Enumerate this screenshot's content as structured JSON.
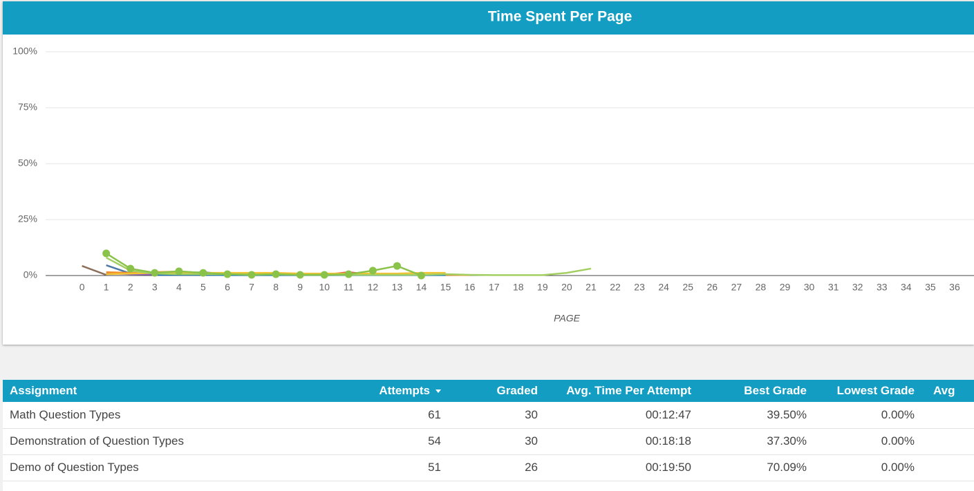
{
  "chart_data": {
    "type": "line",
    "title": "Time Spent Per Page",
    "xlabel": "PAGE",
    "xlim": [
      -1.5,
      36.8
    ],
    "xticks": [
      0,
      1,
      2,
      3,
      4,
      5,
      6,
      7,
      8,
      9,
      10,
      11,
      12,
      13,
      14,
      15,
      16,
      17,
      18,
      19,
      20,
      21,
      22,
      23,
      24,
      25,
      26,
      27,
      28,
      29,
      30,
      31,
      32,
      33,
      34,
      35,
      36
    ],
    "ylim": [
      0,
      100
    ],
    "yticks": [
      {
        "value": 0,
        "label": "0%"
      },
      {
        "value": 25,
        "label": "25%"
      },
      {
        "value": 50,
        "label": "50%"
      },
      {
        "value": 75,
        "label": "75%"
      },
      {
        "value": 100,
        "label": "100%"
      }
    ],
    "grid": true,
    "series": [
      {
        "color": "#8b6f5a",
        "x": [
          0,
          1
        ],
        "values": [
          4.3,
          0.3
        ]
      },
      {
        "color": "#4e79a7",
        "x": [
          1,
          2,
          3,
          4,
          5,
          6
        ],
        "values": [
          4.6,
          0.9,
          0.5,
          0.9,
          1.5,
          0.5
        ]
      },
      {
        "color": "#9467bd",
        "x": [
          1,
          2,
          3,
          4,
          5,
          6
        ],
        "values": [
          1.0,
          0.6,
          0.5,
          0.9,
          0.6,
          0.3
        ]
      },
      {
        "color": "#f28e2b",
        "x": [
          1,
          2,
          3,
          4,
          5,
          6,
          7,
          8,
          9,
          10,
          11,
          12,
          13,
          14,
          15,
          16
        ],
        "values": [
          1.5,
          1.2,
          1.5,
          1.8,
          1.2,
          0.9,
          0.6,
          0.6,
          0.6,
          0.3,
          0.6,
          0.3,
          0.3,
          0.3,
          0.3,
          0.2
        ]
      },
      {
        "color": "#e15759",
        "x": [
          9,
          10,
          11,
          12
        ],
        "values": [
          0.3,
          0.3,
          1.5,
          0.3
        ]
      },
      {
        "color": "#f1c232",
        "x": [
          1,
          2,
          3,
          4,
          5,
          6,
          7,
          8,
          9,
          10,
          11,
          12,
          13,
          14,
          15
        ],
        "values": [
          0.6,
          0.9,
          1.2,
          1.2,
          1.2,
          1.2,
          1.2,
          1.2,
          0.9,
          0.9,
          0.9,
          0.9,
          0.9,
          1.2,
          1.2
        ]
      },
      {
        "color": "#1f77b4",
        "x": [
          3,
          4,
          5,
          6,
          7,
          8,
          9,
          10,
          11,
          12,
          13,
          14,
          15
        ],
        "values": [
          0.3,
          0.3,
          0.3,
          0.2,
          0.2,
          0.2,
          0.2,
          0.2,
          0.2,
          0.2,
          0.2,
          0.2,
          0.2
        ]
      },
      {
        "color": "#a3cf62",
        "x": [
          1,
          2,
          3,
          4,
          5,
          6,
          7,
          8,
          9,
          10,
          11,
          12,
          13,
          14,
          15,
          16,
          17,
          18,
          19,
          20,
          21
        ],
        "values": [
          8.0,
          2.2,
          0.9,
          0.6,
          0.6,
          0.6,
          0.5,
          0.5,
          0.3,
          0.3,
          0.3,
          0.3,
          0.3,
          0.3,
          0.6,
          0.3,
          0.2,
          0.2,
          0.2,
          1.2,
          3.1
        ]
      },
      {
        "color": "#8bc34a",
        "marker": true,
        "x": [
          1,
          2,
          3,
          4,
          5,
          6,
          7,
          8,
          9,
          10,
          11,
          12,
          13,
          14
        ],
        "values": [
          9.9,
          3.1,
          1.2,
          1.9,
          1.2,
          0.6,
          0.3,
          0.6,
          0.3,
          0.3,
          0.6,
          2.2,
          4.3,
          0.0
        ]
      }
    ]
  },
  "table": {
    "columns": [
      "Assignment",
      "Attempts",
      "Graded",
      "Avg. Time Per Attempt",
      "Best Grade",
      "Lowest Grade",
      "Avg"
    ],
    "rows": [
      [
        "Math Question Types",
        "61",
        "30",
        "00:12:47",
        "39.50%",
        "0.00%"
      ],
      [
        "Demonstration of Question Types",
        "54",
        "30",
        "00:18:18",
        "37.30%",
        "0.00%"
      ],
      [
        "Demo of Question Types",
        "51",
        "26",
        "00:19:50",
        "70.09%",
        "0.00%"
      ]
    ]
  }
}
